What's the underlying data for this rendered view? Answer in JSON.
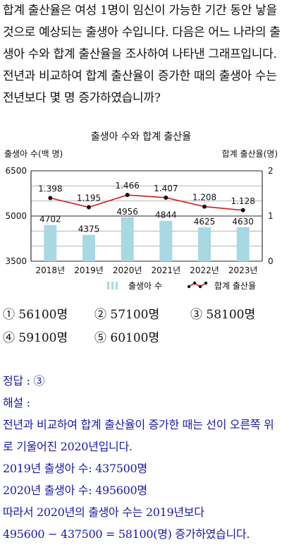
{
  "question": {
    "text": "합계 출산율은 여성 1명이 임신이 가능한 기간 동안 낳을 것으로 예상되는 출생아 수입니다. 다음은 어느 나라의 출생아 수와 합계 출산율을 조사하여 나타낸 그래프입니다. 전년과 비교하여 합계 출산율이 증가한 때의 출생아 수는 전년보다 몇 명 증가하였습니까?"
  },
  "chart_data": {
    "type": "bar+line",
    "title": "출생아 수와 합계 출산율",
    "left_axis_label": "출생아 수(백 명)",
    "right_axis_label": "합계 출산율(명)",
    "categories": [
      "2018년",
      "2019년",
      "2020년",
      "2021년",
      "2022년",
      "2023년"
    ],
    "left_ticks": [
      "6500",
      "5000",
      "3500"
    ],
    "right_ticks": [
      "2",
      "1",
      "0"
    ],
    "ylim_left": [
      3500,
      6500
    ],
    "ylim_right": [
      0,
      2
    ],
    "grid": true,
    "series": [
      {
        "name": "출생아 수",
        "type": "bar",
        "axis": "left",
        "values": [
          4702,
          4375,
          4956,
          4844,
          4625,
          4630
        ],
        "labels": [
          "4702",
          "4375",
          "4956",
          "4844",
          "4625",
          "4630"
        ],
        "color": "#a8d8e4"
      },
      {
        "name": "합계 출산율",
        "type": "line",
        "axis": "right",
        "values": [
          1.398,
          1.195,
          1.466,
          1.407,
          1.208,
          1.128
        ],
        "labels": [
          "1.398",
          "1.195",
          "1.466",
          "1.407",
          "1.208",
          "1.128"
        ],
        "color": "#d91a1a"
      }
    ],
    "legend": {
      "position": "bottom-right",
      "items": [
        "출생아 수",
        "합계 출산율"
      ]
    }
  },
  "choices": [
    {
      "num": "①",
      "text": "56100명"
    },
    {
      "num": "②",
      "text": "57100명"
    },
    {
      "num": "③",
      "text": "58100명"
    },
    {
      "num": "④",
      "text": "59100명"
    },
    {
      "num": "⑤",
      "text": "60100명"
    }
  ],
  "answer": {
    "line1": "정답 : ③",
    "line2": "해설 :",
    "line3": "전년과 비교하여 합계 출산율이 증가한 때는 선이 오른쪽 위로 기울어진 2020년입니다.",
    "line4": "2019년 출생아 수: 437500명",
    "line5": "2020년 출생아 수: 495600명",
    "line6": "따라서 2020년의 출생아 수는 2019년보다",
    "line7": "495600 − 437500 = 58100(명) 증가하였습니다."
  },
  "colors": {
    "bar": "#a8d8e4",
    "line": "#d91a1a",
    "answer_text": "#1a1aa8"
  }
}
